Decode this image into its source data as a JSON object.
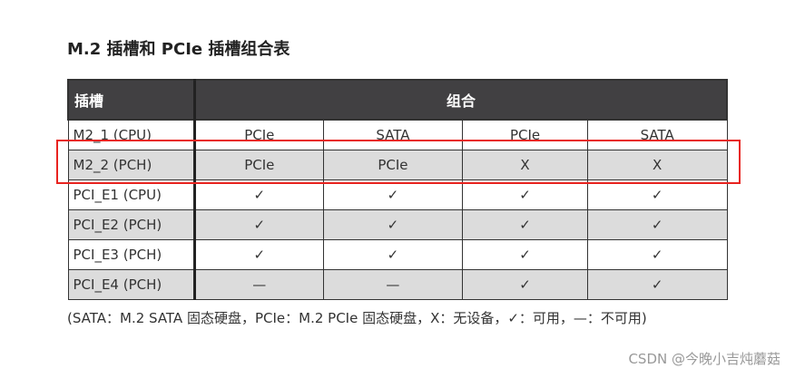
{
  "title": "M.2 插槽和 PCIe 插槽组合表",
  "table": {
    "headers": {
      "slot": "插槽",
      "combo": "组合"
    },
    "rows": [
      {
        "slot": "M2_1 (CPU)",
        "cells": [
          "PCIe",
          "SATA",
          "PCIe",
          "SATA"
        ]
      },
      {
        "slot": "M2_2 (PCH)",
        "cells": [
          "PCIe",
          "PCIe",
          "X",
          "X"
        ]
      },
      {
        "slot": "PCI_E1 (CPU)",
        "cells": [
          "✓",
          "✓",
          "✓",
          "✓"
        ]
      },
      {
        "slot": "PCI_E2 (PCH)",
        "cells": [
          "✓",
          "✓",
          "✓",
          "✓"
        ]
      },
      {
        "slot": "PCI_E3 (PCH)",
        "cells": [
          "✓",
          "✓",
          "✓",
          "✓"
        ]
      },
      {
        "slot": "PCI_E4 (PCH)",
        "cells": [
          "—",
          "—",
          "✓",
          "✓"
        ]
      }
    ]
  },
  "note": "(SATA：M.2 SATA 固态硬盘，PCIe：M.2 PCIe 固态硬盘，X：无设备，✓：可用，—：不可用)",
  "watermark": "CSDN @今晚小吉炖蘑菇",
  "highlight_color": "#e8231f"
}
